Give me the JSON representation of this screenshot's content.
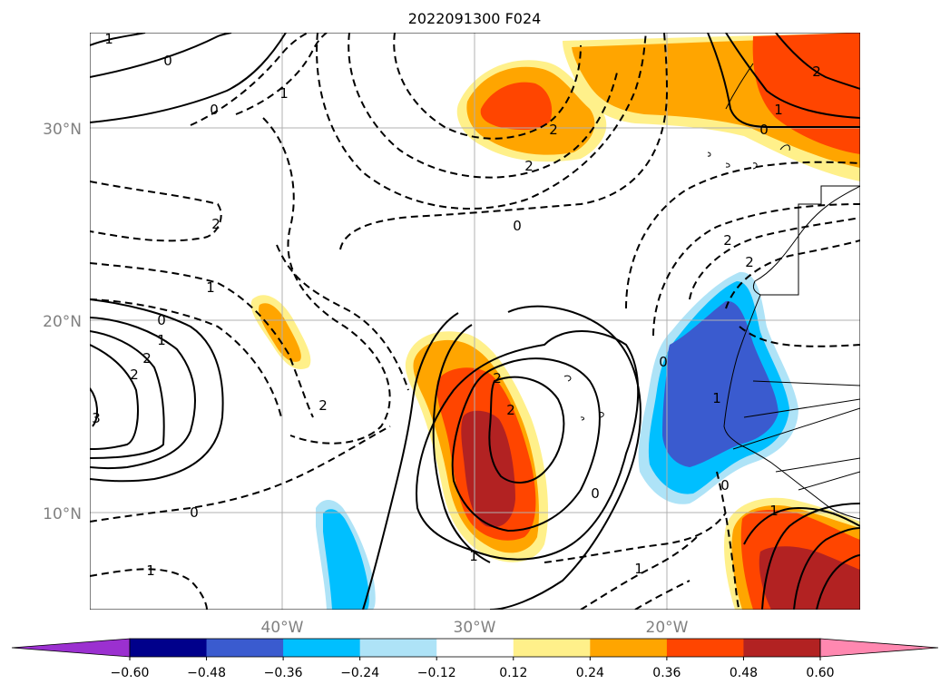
{
  "title": "2022091300 F024",
  "map": {
    "lat_range": [
      5,
      35
    ],
    "lon_range": [
      -50,
      -10
    ],
    "lat_ticks": [
      {
        "value": 30,
        "label": "30°N"
      },
      {
        "value": 20,
        "label": "20°N"
      },
      {
        "value": 10,
        "label": "10°N"
      }
    ],
    "lon_ticks": [
      {
        "value": -40,
        "label": "40°W"
      },
      {
        "value": -30,
        "label": "30°W"
      },
      {
        "value": -20,
        "label": "20°W"
      }
    ],
    "grid": true,
    "contour_labels": [
      "0",
      "1",
      "2",
      "0",
      "1",
      "2",
      "2",
      "0",
      "0",
      "1",
      "2",
      "2",
      "0",
      "1",
      "2",
      "2",
      "0",
      "1",
      "2",
      "1",
      "0",
      "1",
      "2",
      "2",
      "0",
      "1",
      "2",
      "3",
      "0",
      "1",
      "1"
    ]
  },
  "colorbar": {
    "ticks": [
      "−0.60",
      "−0.48",
      "−0.36",
      "−0.24",
      "−0.12",
      "0.12",
      "0.24",
      "0.36",
      "0.48",
      "0.60"
    ],
    "colors": {
      "under": "#9b30d0",
      "bins": [
        "#00008b",
        "#3a5bcf",
        "#00bfff",
        "#aee3f7",
        "#ffffff",
        "#fff08a",
        "#ffa500",
        "#ff4500",
        "#b22222"
      ],
      "over": "#ff88b0"
    }
  },
  "colors": {
    "grid": "#b0b0b0",
    "contour": "#000000",
    "axis_label": "#808080"
  }
}
